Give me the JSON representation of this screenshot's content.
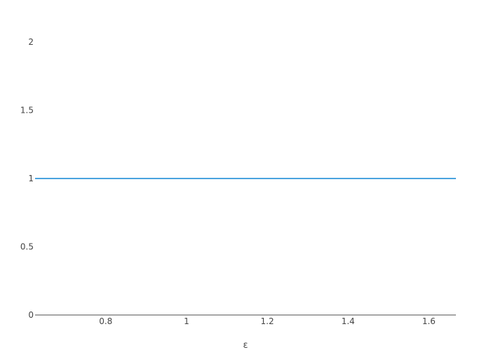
{
  "chart_data": {
    "type": "line",
    "title": "",
    "xlabel": "ε",
    "ylabel": "",
    "xlim": [
      0.625,
      1.667
    ],
    "ylim": [
      0,
      2.2
    ],
    "x_ticks": [
      0.8,
      1,
      1.2,
      1.4,
      1.6
    ],
    "y_ticks": [
      0,
      0.5,
      1,
      1.5,
      2
    ],
    "x_tick_labels": [
      "0.8",
      "1",
      "1.2",
      "1.4",
      "1.6"
    ],
    "y_tick_labels": [
      "0",
      "0.5",
      "1",
      "1.5",
      "2"
    ],
    "grid": false,
    "series": [
      {
        "x": [
          0.625,
          1.667
        ],
        "y": [
          1,
          1
        ],
        "color": "#4aa3df"
      }
    ]
  },
  "colors": {
    "axis_line": "#888888",
    "text": "#444444"
  }
}
